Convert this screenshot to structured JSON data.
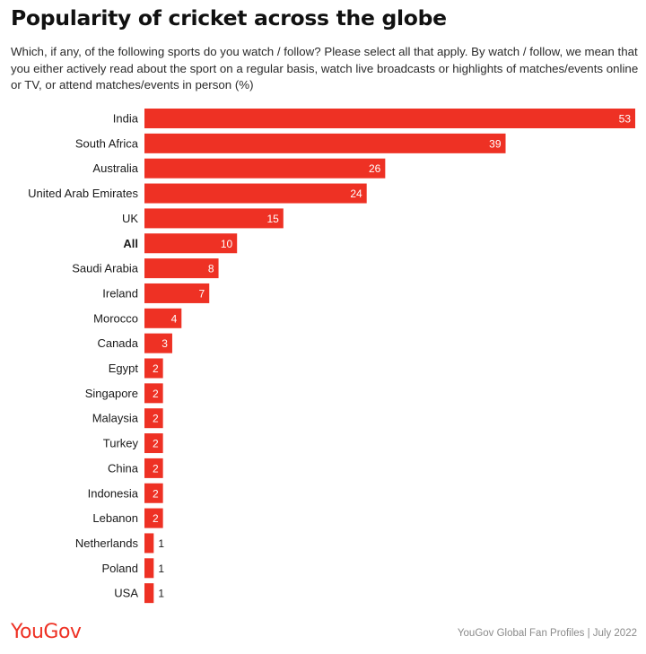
{
  "title": "Popularity of cricket across the globe",
  "subtitle": "Which, if any, of the following sports do you watch / follow? Please select all that apply. By watch / follow, we mean that you either actively read about the sport on a regular basis, watch live broadcasts or highlights of matches/events online or TV, or attend matches/events in person (%)",
  "footer": {
    "logo": "YouGov",
    "source": "YouGov Global Fan Profiles | July 2022"
  },
  "colors": {
    "bar": "#ee3124",
    "label_inside": "#ffffff",
    "label_outside": "#1a1a1a"
  },
  "chart_data": {
    "type": "bar",
    "orientation": "horizontal",
    "categories": [
      "India",
      "South Africa",
      "Australia",
      "United Arab Emirates",
      "UK",
      "All",
      "Saudi Arabia",
      "Ireland",
      "Morocco",
      "Canada",
      "Egypt",
      "Singapore",
      "Malaysia",
      "Turkey",
      "China",
      "Indonesia",
      "Lebanon",
      "Netherlands",
      "Poland",
      "USA"
    ],
    "values": [
      53,
      39,
      26,
      24,
      15,
      10,
      8,
      7,
      4,
      3,
      2,
      2,
      2,
      2,
      2,
      2,
      2,
      1,
      1,
      1
    ],
    "bold_categories": [
      "All"
    ],
    "xlim": [
      0,
      53
    ],
    "grid": false,
    "legend": "none"
  }
}
